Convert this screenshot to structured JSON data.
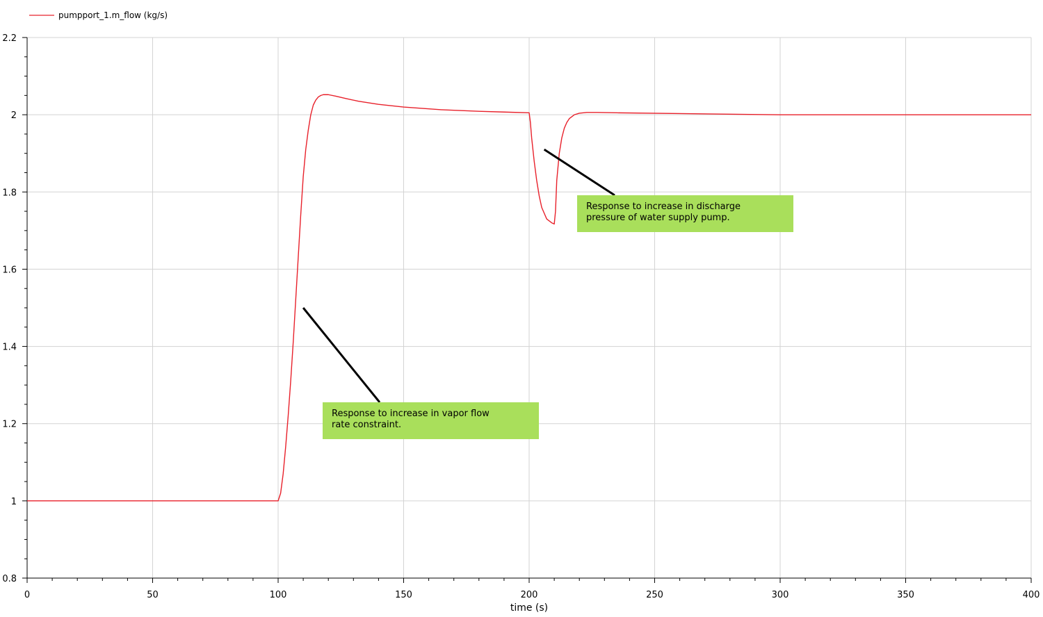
{
  "chart_data": {
    "type": "line",
    "title": "",
    "xlabel": "time (s)",
    "ylabel": "",
    "xlim": [
      0,
      400
    ],
    "ylim": [
      0.8,
      2.2
    ],
    "x_ticks": [
      0,
      50,
      100,
      150,
      200,
      250,
      300,
      350,
      400
    ],
    "y_ticks": [
      0.8,
      1,
      1.2,
      1.4,
      1.6,
      1.8,
      2,
      2.2
    ],
    "x_tick_labels": [
      "0",
      "50",
      "100",
      "150",
      "200",
      "250",
      "300",
      "350",
      "400"
    ],
    "y_tick_labels": [
      "0.8",
      "1",
      "1.2",
      "1.4",
      "1.6",
      "1.8",
      "2",
      "2.2"
    ],
    "grid": true,
    "legend_position": "top-left",
    "series": [
      {
        "name": "pumpport_1.m_flow (kg/s)",
        "color": "#e8202a",
        "x": [
          0,
          100,
          101,
          102,
          103,
          104,
          105,
          106,
          107,
          108,
          109,
          110,
          111,
          112,
          113,
          114,
          115,
          116,
          117,
          118,
          120,
          123,
          127,
          132,
          140,
          150,
          165,
          180,
          190,
          200,
          200.5,
          201,
          202,
          203,
          204,
          205,
          206,
          207,
          208,
          209,
          210,
          210.5,
          211,
          212,
          213,
          214,
          215,
          216,
          218,
          220,
          223,
          227,
          235,
          260,
          300,
          400
        ],
        "values": [
          1.0,
          1.0,
          1.02,
          1.07,
          1.14,
          1.22,
          1.31,
          1.41,
          1.52,
          1.63,
          1.74,
          1.84,
          1.91,
          1.96,
          2.0,
          2.025,
          2.038,
          2.046,
          2.05,
          2.052,
          2.052,
          2.048,
          2.042,
          2.035,
          2.027,
          2.02,
          2.013,
          2.009,
          2.007,
          2.005,
          1.98,
          1.94,
          1.88,
          1.83,
          1.79,
          1.76,
          1.745,
          1.73,
          1.725,
          1.72,
          1.717,
          1.75,
          1.83,
          1.9,
          1.94,
          1.965,
          1.98,
          1.99,
          2.0,
          2.004,
          2.006,
          2.006,
          2.005,
          2.003,
          2.0,
          2.0
        ]
      }
    ],
    "annotations": [
      {
        "text_lines": [
          "Response to increase in vapor flow",
          "rate constraint."
        ],
        "background": "#a9df5b",
        "points_to": {
          "x": 110,
          "y": 1.5
        }
      },
      {
        "text_lines": [
          "Response to increase in discharge",
          "pressure of water supply pump."
        ],
        "background": "#a9df5b",
        "points_to": {
          "x": 206,
          "y": 1.91
        }
      }
    ]
  }
}
